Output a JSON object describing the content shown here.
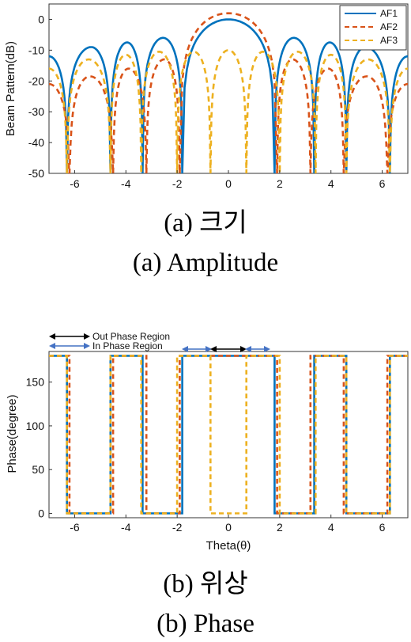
{
  "chart_data": [
    {
      "type": "line",
      "ylabel": "Beam Pattern(dB)",
      "xlabel": "",
      "xlim": [
        -7,
        7
      ],
      "ylim": [
        -50,
        5
      ],
      "xticks": [
        -6,
        -4,
        -2,
        0,
        2,
        4,
        6
      ],
      "yticks": [
        0,
        -10,
        -20,
        -30,
        -40,
        -50
      ],
      "tick_labels_x": [
        "-6",
        "-4",
        "-2",
        "0",
        "2",
        "4",
        "6"
      ],
      "tick_labels_y": [
        "0",
        "-10",
        "-20",
        "-30",
        "-40",
        "-50"
      ],
      "grid": false,
      "legend": "top-right",
      "series": [
        {
          "name": "AF1",
          "color": "#0072BD",
          "style": "solid-dotted",
          "nulls": [
            -6.3,
            -4.6,
            -3.35,
            -1.8,
            1.8,
            3.35,
            4.6,
            6.3
          ],
          "peaks": [
            [
              -7,
              -12
            ],
            [
              -5.35,
              -9
            ],
            [
              -3.95,
              -7.5
            ],
            [
              -2.55,
              -6
            ],
            [
              0,
              0
            ],
            [
              2.55,
              -6
            ],
            [
              3.95,
              -7.5
            ],
            [
              5.35,
              -9
            ],
            [
              7,
              -12
            ]
          ]
        },
        {
          "name": "AF2",
          "color": "#D95319",
          "style": "dashed",
          "nulls": [
            -6.2,
            -4.5,
            -3.2,
            -1.9,
            1.9,
            3.2,
            4.5,
            6.2
          ],
          "peaks": [
            [
              -7,
              -21
            ],
            [
              -5.4,
              -18.5
            ],
            [
              -3.9,
              -16
            ],
            [
              -2.5,
              -13
            ],
            [
              0,
              2
            ],
            [
              2.5,
              -13
            ],
            [
              3.9,
              -16
            ],
            [
              5.4,
              -18.5
            ],
            [
              7,
              -21
            ]
          ]
        },
        {
          "name": "AF3",
          "color": "#EDB120",
          "style": "dashed",
          "nulls": [
            -6.3,
            -4.6,
            -3.4,
            -2.0,
            -0.7,
            0.7,
            2.0,
            3.4,
            4.6,
            6.3
          ],
          "peaks": [
            [
              -7,
              -16
            ],
            [
              -5.45,
              -13
            ],
            [
              -4.0,
              -11.5
            ],
            [
              -2.7,
              -10.5
            ],
            [
              -1.35,
              -10.5
            ],
            [
              0,
              -10
            ],
            [
              1.35,
              -10.5
            ],
            [
              2.7,
              -10.5
            ],
            [
              4.0,
              -11.5
            ],
            [
              5.45,
              -13
            ],
            [
              7,
              -16
            ]
          ]
        }
      ]
    },
    {
      "type": "line",
      "xlabel": "Theta(θ)",
      "ylabel": "Phase(degree)",
      "xlim": [
        -7,
        7
      ],
      "ylim": [
        -5,
        185
      ],
      "xticks": [
        -6,
        -4,
        -2,
        0,
        2,
        4,
        6
      ],
      "yticks": [
        0,
        50,
        100,
        150
      ],
      "tick_labels_x": [
        "-6",
        "-4",
        "-2",
        "0",
        "2",
        "4",
        "6"
      ],
      "tick_labels_y": [
        "0",
        "50",
        "100",
        "150"
      ],
      "grid": false,
      "annotations": [
        {
          "text": "Out Phase Region"
        },
        {
          "text": "In Phase Region"
        }
      ],
      "series": [
        {
          "name": "AF1",
          "color": "#0072BD",
          "steps": [
            [
              -7,
              180
            ],
            [
              -6.3,
              0
            ],
            [
              -4.6,
              180
            ],
            [
              -3.35,
              0
            ],
            [
              -1.8,
              180
            ],
            [
              1.8,
              0
            ],
            [
              3.35,
              180
            ],
            [
              4.6,
              0
            ],
            [
              6.3,
              180
            ]
          ]
        },
        {
          "name": "AF2",
          "color": "#D95319",
          "steps": [
            [
              -7,
              180
            ],
            [
              -6.2,
              0
            ],
            [
              -4.5,
              180
            ],
            [
              -3.2,
              0
            ],
            [
              -1.9,
              180
            ],
            [
              1.9,
              0
            ],
            [
              3.2,
              180
            ],
            [
              4.5,
              0
            ],
            [
              6.2,
              180
            ]
          ]
        },
        {
          "name": "AF3",
          "color": "#EDB120",
          "steps": [
            [
              -7,
              180
            ],
            [
              -6.3,
              0
            ],
            [
              -4.6,
              180
            ],
            [
              -3.4,
              0
            ],
            [
              -2.0,
              180
            ],
            [
              -0.7,
              0
            ],
            [
              0.7,
              180
            ],
            [
              2.0,
              0
            ],
            [
              3.4,
              180
            ],
            [
              4.6,
              0
            ],
            [
              6.3,
              180
            ]
          ]
        }
      ]
    }
  ],
  "captions": {
    "top_ko": "(a)  크기",
    "top_en": "(a)  Amplitude",
    "bottom_ko": "(b)  위상",
    "bottom_en": "(b)  Phase"
  }
}
